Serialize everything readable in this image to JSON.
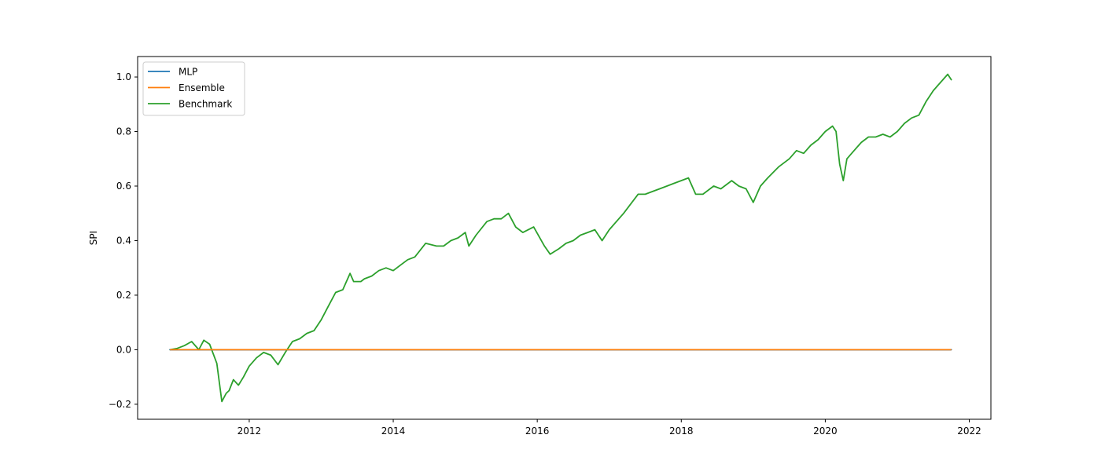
{
  "chart_data": {
    "type": "line",
    "ylabel": "SPI",
    "xlabel": "",
    "title": "",
    "xlim": [
      2010.45,
      2022.3
    ],
    "ylim": [
      -0.255,
      1.075
    ],
    "x_ticks": [
      2012,
      2014,
      2016,
      2018,
      2020,
      2022
    ],
    "x_tick_labels": [
      "2012",
      "2014",
      "2016",
      "2018",
      "2020",
      "2022"
    ],
    "y_ticks": [
      -0.2,
      0.0,
      0.2,
      0.4,
      0.6,
      0.8,
      1.0
    ],
    "y_tick_labels": [
      "−0.2",
      "0.0",
      "0.2",
      "0.4",
      "0.6",
      "0.8",
      "1.0"
    ],
    "grid": false,
    "legend_position": "top-left",
    "series": [
      {
        "name": "MLP",
        "color": "#1f77b4",
        "x": [
          2010.9,
          2021.75
        ],
        "y": [
          0.0,
          0.0
        ]
      },
      {
        "name": "Ensemble",
        "color": "#ff7f0e",
        "x": [
          2010.9,
          2021.75
        ],
        "y": [
          0.0,
          0.0
        ]
      },
      {
        "name": "Benchmark",
        "color": "#2ca02c",
        "x": [
          2010.9,
          2011.0,
          2011.1,
          2011.2,
          2011.3,
          2011.37,
          2011.45,
          2011.55,
          2011.62,
          2011.68,
          2011.72,
          2011.78,
          2011.85,
          2011.92,
          2012.0,
          2012.1,
          2012.2,
          2012.3,
          2012.4,
          2012.5,
          2012.6,
          2012.7,
          2012.8,
          2012.9,
          2013.0,
          2013.1,
          2013.2,
          2013.3,
          2013.4,
          2013.45,
          2013.55,
          2013.6,
          2013.7,
          2013.8,
          2013.9,
          2014.0,
          2014.1,
          2014.2,
          2014.3,
          2014.45,
          2014.6,
          2014.7,
          2014.8,
          2014.9,
          2015.0,
          2015.05,
          2015.15,
          2015.3,
          2015.4,
          2015.5,
          2015.6,
          2015.7,
          2015.8,
          2015.95,
          2016.1,
          2016.18,
          2016.3,
          2016.4,
          2016.5,
          2016.6,
          2016.7,
          2016.8,
          2016.9,
          2017.0,
          2017.2,
          2017.4,
          2017.5,
          2017.6,
          2017.7,
          2017.8,
          2017.9,
          2018.1,
          2018.2,
          2018.3,
          2018.45,
          2018.55,
          2018.7,
          2018.8,
          2018.9,
          2019.0,
          2019.1,
          2019.2,
          2019.35,
          2019.5,
          2019.6,
          2019.7,
          2019.8,
          2019.9,
          2020.0,
          2020.1,
          2020.15,
          2020.2,
          2020.25,
          2020.3,
          2020.4,
          2020.5,
          2020.6,
          2020.7,
          2020.8,
          2020.9,
          2021.0,
          2021.1,
          2021.2,
          2021.3,
          2021.4,
          2021.5,
          2021.6,
          2021.7,
          2021.75
        ],
        "y": [
          0.0,
          0.005,
          0.015,
          0.03,
          0.0,
          0.035,
          0.02,
          -0.05,
          -0.19,
          -0.16,
          -0.15,
          -0.11,
          -0.13,
          -0.1,
          -0.06,
          -0.03,
          -0.01,
          -0.02,
          -0.055,
          -0.01,
          0.03,
          0.04,
          0.06,
          0.07,
          0.11,
          0.16,
          0.21,
          0.22,
          0.28,
          0.25,
          0.25,
          0.26,
          0.27,
          0.29,
          0.3,
          0.29,
          0.31,
          0.33,
          0.34,
          0.39,
          0.38,
          0.38,
          0.4,
          0.41,
          0.43,
          0.38,
          0.42,
          0.47,
          0.48,
          0.48,
          0.5,
          0.45,
          0.43,
          0.45,
          0.38,
          0.35,
          0.37,
          0.39,
          0.4,
          0.42,
          0.43,
          0.44,
          0.4,
          0.44,
          0.5,
          0.57,
          0.57,
          0.58,
          0.59,
          0.6,
          0.61,
          0.63,
          0.57,
          0.57,
          0.6,
          0.59,
          0.62,
          0.6,
          0.59,
          0.54,
          0.6,
          0.63,
          0.67,
          0.7,
          0.73,
          0.72,
          0.75,
          0.77,
          0.8,
          0.82,
          0.8,
          0.68,
          0.62,
          0.7,
          0.73,
          0.76,
          0.78,
          0.78,
          0.79,
          0.78,
          0.8,
          0.83,
          0.85,
          0.86,
          0.91,
          0.95,
          0.98,
          1.01,
          0.99
        ]
      }
    ]
  }
}
